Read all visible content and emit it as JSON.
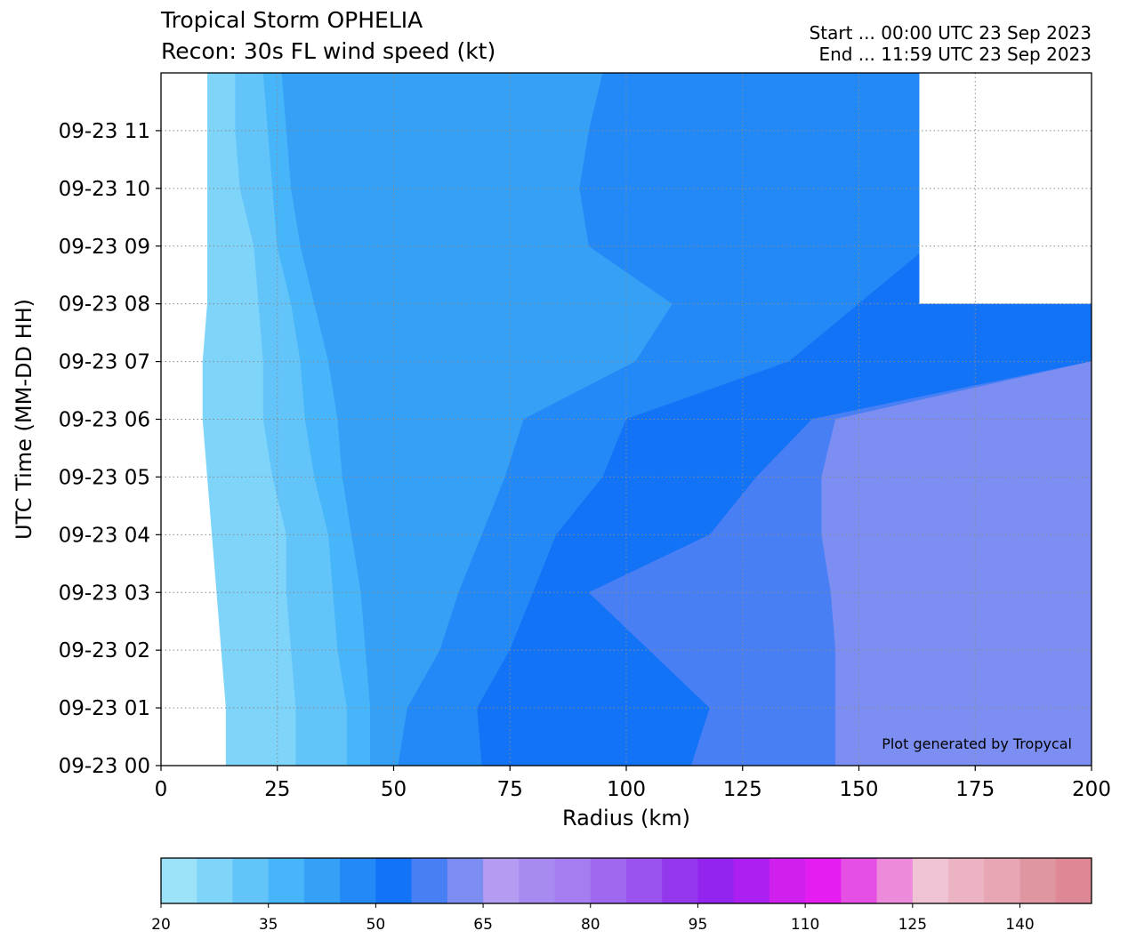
{
  "chart_data": {
    "type": "heatmap",
    "title": "Tropical Storm OPHELIA",
    "subtitle": "Recon: 30s FL wind speed (kt)",
    "start_label": "Start ... 00:00 UTC 23 Sep 2023",
    "end_label": "End ... 11:59 UTC 23 Sep 2023",
    "xlabel": "Radius (km)",
    "ylabel": "UTC Time (MM-DD HH)",
    "xlim": [
      0,
      200
    ],
    "ylim": [
      0,
      12
    ],
    "x_ticks": [
      0,
      25,
      50,
      75,
      100,
      125,
      150,
      175,
      200
    ],
    "x_tick_labels": [
      "0",
      "25",
      "50",
      "75",
      "100",
      "125",
      "150",
      "175",
      "200"
    ],
    "y_ticks": [
      0,
      1,
      2,
      3,
      4,
      5,
      6,
      7,
      8,
      9,
      10,
      11
    ],
    "y_tick_labels": [
      "09-23 00",
      "09-23 01",
      "09-23 02",
      "09-23 03",
      "09-23 04",
      "09-23 05",
      "09-23 06",
      "09-23 07",
      "09-23 08",
      "09-23 09",
      "09-23 10",
      "09-23 11"
    ],
    "grid": true,
    "annotation": "Plot generated by Tropycal",
    "missing_region": {
      "x_min": 163,
      "x_max": 200,
      "y_min": 8,
      "y_max": 12
    },
    "wind_levels_kt": [
      20,
      25,
      30,
      35,
      40,
      45,
      50,
      55,
      60
    ],
    "wind_profiles": [
      {
        "hour": 0,
        "bounds_km": [
          14,
          29,
          40,
          45,
          51,
          69,
          114,
          145
        ]
      },
      {
        "hour": 1,
        "bounds_km": [
          14,
          29,
          40,
          45,
          53,
          68,
          118,
          145
        ]
      },
      {
        "hour": 2,
        "bounds_km": [
          13,
          28,
          38,
          44,
          60,
          75,
          105,
          145
        ]
      },
      {
        "hour": 3,
        "bounds_km": [
          12,
          27,
          37,
          43,
          64,
          80,
          92,
          144
        ]
      },
      {
        "hour": 4,
        "bounds_km": [
          11,
          27,
          36,
          41,
          69,
          85,
          118,
          142
        ]
      },
      {
        "hour": 5,
        "bounds_km": [
          10,
          24,
          33,
          39,
          74,
          95,
          128,
          142
        ]
      },
      {
        "hour": 6,
        "bounds_km": [
          9,
          22,
          31,
          38,
          78,
          100,
          140,
          145
        ]
      },
      {
        "hour": 7,
        "bounds_km": [
          9,
          22,
          30,
          36,
          102,
          135,
          200,
          200
        ]
      },
      {
        "hour": 8,
        "bounds_km": [
          10,
          21,
          28,
          33,
          110,
          150,
          200,
          200
        ]
      },
      {
        "hour": 9,
        "bounds_km": [
          10,
          20,
          25,
          30,
          92,
          165,
          200,
          200
        ]
      },
      {
        "hour": 10,
        "bounds_km": [
          10,
          17,
          24,
          28,
          90,
          165,
          200,
          200
        ]
      },
      {
        "hour": 11,
        "bounds_km": [
          10,
          16,
          23,
          27,
          92,
          165,
          200,
          200
        ]
      },
      {
        "hour": 12,
        "bounds_km": [
          10,
          16,
          22,
          26,
          95,
          165,
          200,
          200
        ]
      }
    ],
    "colorbar": {
      "min": 20,
      "max": 150,
      "step": 5,
      "tick_values": [
        20,
        35,
        50,
        65,
        80,
        95,
        110,
        125,
        140
      ],
      "tick_labels": [
        "20",
        "35",
        "50",
        "65",
        "80",
        "95",
        "110",
        "125",
        "140"
      ],
      "colors": [
        "#9ce3fa",
        "#7fd4fa",
        "#63c4fa",
        "#47b5fa",
        "#34a0f6",
        "#2289f7",
        "#1373f6",
        "#497ff5",
        "#7c8ef1",
        "#b39cf2",
        "#a88bf1",
        "#a67df0",
        "#a068ef",
        "#9b52ee",
        "#9438ed",
        "#9224ee",
        "#ab1ff0",
        "#cf20ee",
        "#e41ef0",
        "#e64fe3",
        "#ec8adc",
        "#f0c3d4",
        "#ecb4c3",
        "#e8a5b3",
        "#e096a1",
        "#dd8894"
      ]
    }
  }
}
